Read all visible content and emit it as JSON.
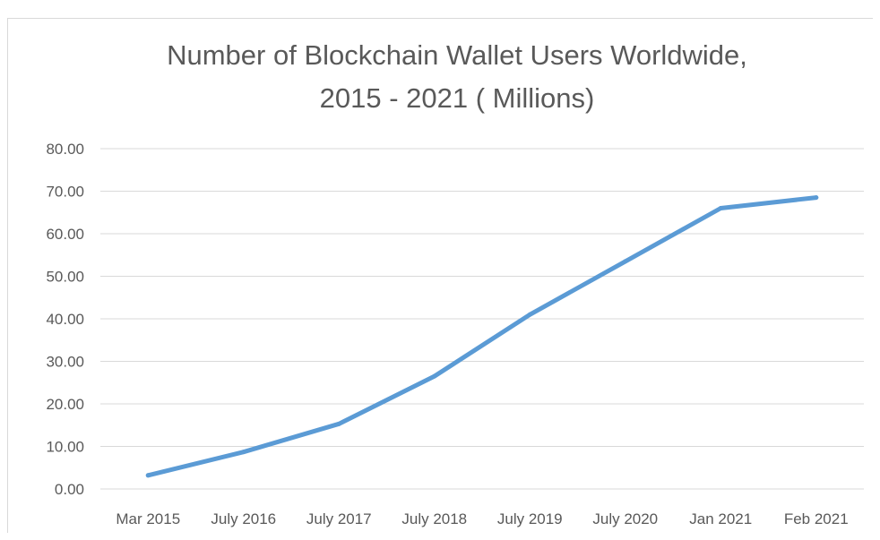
{
  "chart_data": {
    "type": "line",
    "title_lines": [
      "Number of Blockchain Wallet Users Worldwide,",
      "2015 - 2021 ( Millions)"
    ],
    "categories": [
      "Mar 2015",
      "July 2016",
      "July 2017",
      "July 2018",
      "July 2019",
      "July 2020",
      "Jan 2021",
      "Feb 2021"
    ],
    "series": [
      {
        "values": [
          3.2,
          8.7,
          15.3,
          26.5,
          41.0,
          53.5,
          66.0,
          68.5
        ],
        "color": "#5b9bd5"
      }
    ],
    "yticks": [
      "0.00",
      "10.00",
      "20.00",
      "30.00",
      "40.00",
      "50.00",
      "60.00",
      "70.00",
      "80.00"
    ],
    "ylim": [
      0,
      80
    ],
    "grid": true,
    "legend": "none"
  }
}
